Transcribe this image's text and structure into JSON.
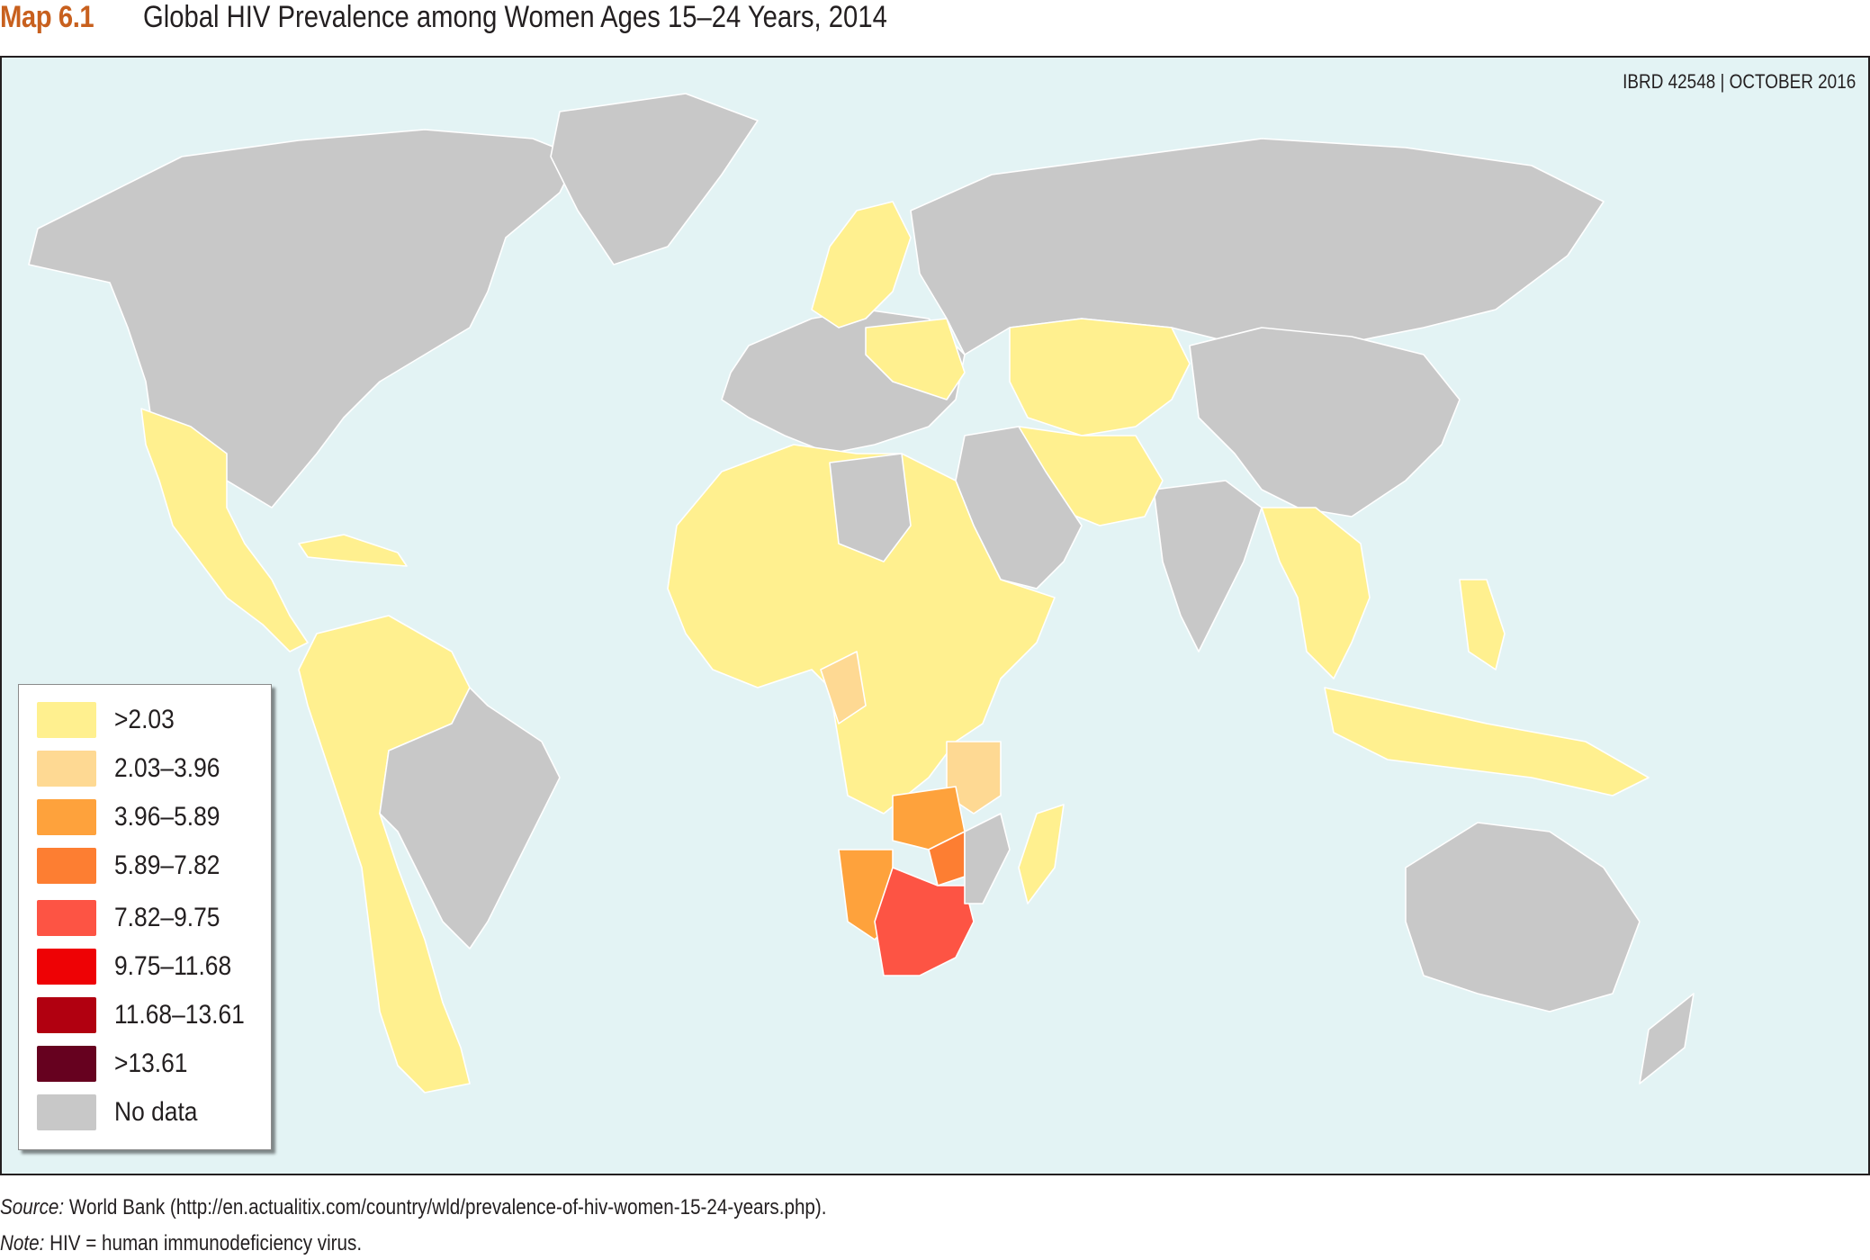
{
  "header": {
    "map_number": "Map 6.1",
    "title": "Global HIV Prevalence among Women Ages 15–24 Years, 2014"
  },
  "map": {
    "reference": "IBRD 42548  |  OCTOBER 2016",
    "ocean_color": "#e3f3f4",
    "legend": [
      {
        "label": ">2.03",
        "color": "#fff08f"
      },
      {
        "label": "2.03–3.96",
        "color": "#fed993"
      },
      {
        "label": "3.96–5.89",
        "color": "#fea23c"
      },
      {
        "label": "5.89–7.82",
        "color": "#fd7e32"
      },
      {
        "label": "7.82–9.75",
        "color": "#fd5444"
      },
      {
        "label": "9.75–11.68",
        "color": "#ee0205"
      },
      {
        "label": "11.68–13.61",
        "color": "#b10010"
      },
      {
        "label": ">13.61",
        "color": "#66011f"
      },
      {
        "label": "No data",
        "color": "#c8c8c8"
      }
    ]
  },
  "footnotes": {
    "source_key": "Source:",
    "source_text": " World Bank (http://en.actualitix.com/country/wld/prevalence-of-hiv-women-15-24-years.php).",
    "note_key": "Note:",
    "note_text": " HIV = human immunodeficiency virus."
  }
}
